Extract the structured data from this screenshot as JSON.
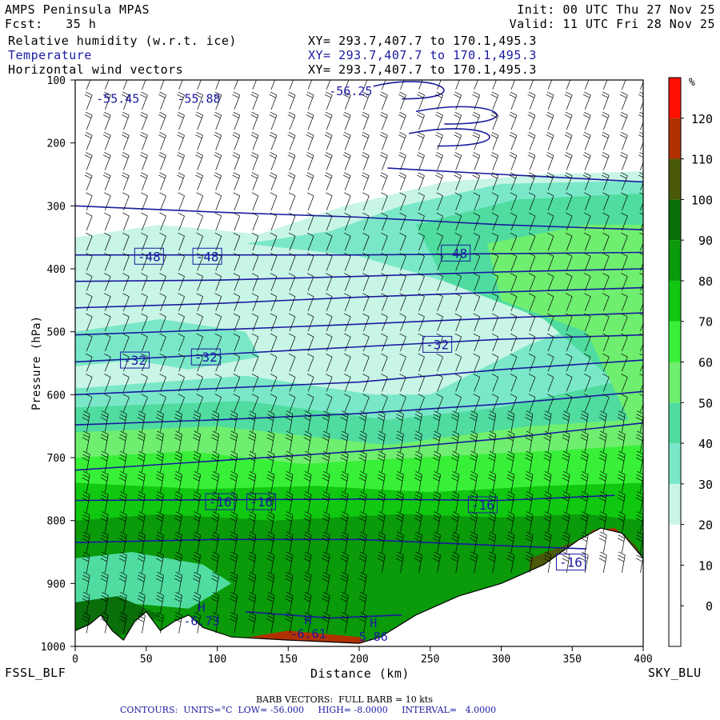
{
  "header": {
    "title": "AMPS Peninsula MPAS",
    "fcst": "Fcst:   35 h",
    "init": "Init: 00 UTC Thu 27 Nov 25",
    "valid": "Valid: 11 UTC Fri 28 Nov 25",
    "fields": [
      {
        "name": "Relative humidity (w.r.t. ice)",
        "xy": "XY= 293.7,407.7 to 170.1,495.3",
        "color": "#000000"
      },
      {
        "name": "Temperature",
        "xy": "XY= 293.7,407.7 to 170.1,495.3",
        "color": "#1a1aa0"
      },
      {
        "name": "Horizontal wind vectors",
        "xy": "XY= 293.7,407.7 to 170.1,495.3",
        "color": "#000000"
      }
    ]
  },
  "chart_data": {
    "type": "heatmap",
    "title": "AMPS Peninsula MPAS",
    "xlabel": "Distance (km)",
    "ylabel": "Pressure (hPa)",
    "xlim": [
      0,
      400
    ],
    "ylim": [
      1000,
      100
    ],
    "x_ticks": [
      0,
      50,
      100,
      150,
      200,
      250,
      300,
      350,
      400
    ],
    "y_ticks": [
      100,
      200,
      300,
      400,
      500,
      600,
      700,
      800,
      900,
      1000
    ],
    "left_endpoint": "FSSL_BLF",
    "right_endpoint": "SKY_BLU",
    "colorbar": {
      "unit": "%",
      "levels": [
        0,
        10,
        20,
        30,
        40,
        50,
        60,
        70,
        80,
        90,
        100,
        110,
        120
      ],
      "colors": [
        "#ffffff",
        "#ffffff",
        "#ffffff",
        "#c8f5e6",
        "#7ae8c8",
        "#50dca0",
        "#6fee6f",
        "#38f038",
        "#10c810",
        "#0a9a0a",
        "#0a6e0a",
        "#4a5a08",
        "#b03000",
        "#ff1000"
      ]
    },
    "temperature_contours": {
      "units": "°C",
      "low": -56.0,
      "high": -8.0,
      "interval": 4.0,
      "color": "#1a1aa0",
      "labels": [
        {
          "text": "-48",
          "x": 52,
          "p": 380
        },
        {
          "text": "-48",
          "x": 93,
          "p": 380
        },
        {
          "text": "-48",
          "x": 268,
          "p": 375
        },
        {
          "text": "-32",
          "x": 42,
          "p": 545
        },
        {
          "text": "-32",
          "x": 92,
          "p": 540
        },
        {
          "text": "-32",
          "x": 255,
          "p": 520
        },
        {
          "text": "-16",
          "x": 102,
          "p": 770
        },
        {
          "text": "-16",
          "x": 131,
          "p": 770
        },
        {
          "text": "-16",
          "x": 287,
          "p": 775
        },
        {
          "text": "-16",
          "x": 349,
          "p": 866
        }
      ],
      "extrema": [
        {
          "text": "-55.45",
          "x": 30,
          "p": 130
        },
        {
          "text": "-55.88",
          "x": 87,
          "p": 130
        },
        {
          "text": "-56.25",
          "x": 194,
          "p": 118
        },
        {
          "kind": "H",
          "text": "-6.73",
          "x": 89,
          "p": 960
        },
        {
          "kind": "H",
          "text": "-6.61",
          "x": 164,
          "p": 980
        },
        {
          "kind": "H",
          "text": "5.86",
          "x": 210,
          "p": 985
        }
      ]
    },
    "wind_barbs": {
      "description": "BARB VECTORS:  FULL BARB = 10 kts"
    }
  },
  "footer": {
    "barb": "BARB VECTORS:  FULL BARB = 10 kts",
    "contours": "CONTOURS:  UNITS=°C  LOW= -56.000     HIGH= -8.0000     INTERVAL=   4.0000"
  }
}
